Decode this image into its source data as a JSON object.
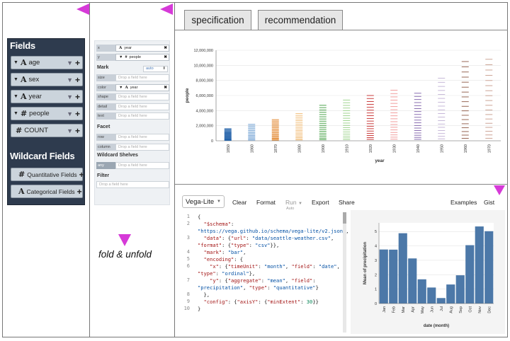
{
  "fields_panel": {
    "title": "Fields",
    "fields": [
      {
        "caret": "▼",
        "type": "A",
        "label": "age"
      },
      {
        "caret": "▼",
        "type": "A",
        "label": "sex"
      },
      {
        "caret": "▼",
        "type": "A",
        "label": "year"
      },
      {
        "caret": "▼",
        "type": "#",
        "label": "people"
      },
      {
        "caret": "",
        "type": "#",
        "label": "COUNT"
      }
    ],
    "wildcard_title": "Wildcard Fields",
    "wildcards": [
      {
        "type": "#",
        "label": "Quantitative Fields"
      },
      {
        "type": "A",
        "label": "Categorical Fields"
      }
    ]
  },
  "encoding_panel": {
    "x_label": "x",
    "x_field": "year",
    "y_label": "y",
    "y_field": "people",
    "mark_title": "Mark",
    "mark_value": "auto",
    "channels": [
      "size",
      "color",
      "shape",
      "detail",
      "text"
    ],
    "color_field": "year",
    "drop_text": "Drop a field here",
    "facet_title": "Facet",
    "facet_channels": [
      "row",
      "column"
    ],
    "wildcard_title": "Wildcard Shelves",
    "wildcard_channel": "any",
    "filter_title": "Filter",
    "remove": "✖"
  },
  "annotation": {
    "fold": "fold & unfold"
  },
  "tabs": {
    "spec": "specification",
    "rec": "recommendation"
  },
  "chart_data": {
    "type": "scatter",
    "mark": "tick",
    "xlabel": "year",
    "ylabel": "people",
    "categories": [
      "1850",
      "1860",
      "1870",
      "1880",
      "1900",
      "1910",
      "1920",
      "1930",
      "1940",
      "1950",
      "1960",
      "1970"
    ],
    "ylim": [
      0,
      12000000
    ],
    "yticks": [
      "0",
      "2,000,000",
      "4,000,000",
      "6,000,000",
      "8,000,000",
      "10,000,000",
      "12,000,000"
    ],
    "max_values": [
      1600000,
      2200000,
      2800000,
      3600000,
      4700000,
      5400000,
      6000000,
      6700000,
      6300000,
      8300000,
      10500000,
      10800000
    ],
    "colors": [
      "#1f5fa8",
      "#8fb5dc",
      "#e07b1a",
      "#f0b870",
      "#3a9a3a",
      "#96cf84",
      "#c52a2a",
      "#f09393",
      "#7d5ea8",
      "#c0b0d4",
      "#8c5642",
      "#c79a8a"
    ]
  },
  "editor": {
    "mode": "Vega-Lite",
    "clear": "Clear",
    "format": "Format",
    "run": "Run",
    "run_sub": "Auto",
    "export": "Export",
    "share": "Share",
    "examples": "Examples",
    "gist": "Gist",
    "line_numbers": [
      "1",
      "2",
      "3",
      "4",
      "5",
      "6",
      "7",
      "8",
      "9",
      "10"
    ]
  },
  "preview_chart": {
    "type": "bar",
    "categories": [
      "Jan",
      "Feb",
      "Mar",
      "Apr",
      "May",
      "Jun",
      "Jul",
      "Aug",
      "Sep",
      "Oct",
      "Nov",
      "Dec"
    ],
    "values": [
      3.75,
      3.74,
      4.88,
      3.13,
      1.68,
      1.11,
      0.38,
      1.32,
      1.96,
      4.05,
      5.35,
      5.02
    ],
    "yticks": [
      "0",
      "1",
      "2",
      "3",
      "4",
      "5"
    ],
    "ylim": [
      0,
      5.6
    ],
    "xlabel": "date (month)",
    "ylabel": "Mean of precipitation",
    "color": "#4c78a8"
  }
}
